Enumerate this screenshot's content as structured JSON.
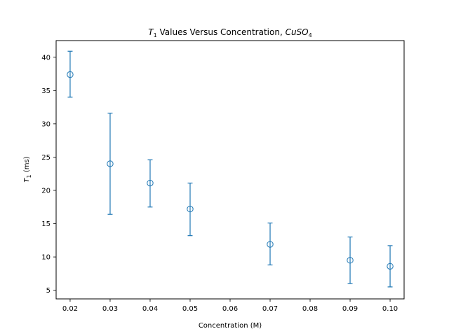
{
  "chart_data": {
    "type": "scatter",
    "title_parts": {
      "sym": "T",
      "sub": "1",
      "mid": " Values Versus Concentration, ",
      "chem": "CuSO",
      "chem_sub": "4"
    },
    "xlabel": "Concentration (M)",
    "ylabel_parts": {
      "sym": "T",
      "sub": "1",
      "rest": " (ms)"
    },
    "xlim": [
      0.0165,
      0.1035
    ],
    "ylim": [
      3.7,
      42.5
    ],
    "xticks": [
      "0.02",
      "0.03",
      "0.04",
      "0.05",
      "0.06",
      "0.07",
      "0.08",
      "0.09",
      "0.10"
    ],
    "yticks": [
      "5",
      "10",
      "15",
      "20",
      "25",
      "30",
      "35",
      "40"
    ],
    "grid": false,
    "legend": "none",
    "marker": "open-circle",
    "color": "#1f77b4",
    "points": [
      {
        "x": 0.02,
        "y": 37.4,
        "yerr_low": 34.0,
        "yerr_high": 40.9
      },
      {
        "x": 0.03,
        "y": 24.0,
        "yerr_low": 16.4,
        "yerr_high": 31.6
      },
      {
        "x": 0.04,
        "y": 21.1,
        "yerr_low": 17.5,
        "yerr_high": 24.6
      },
      {
        "x": 0.05,
        "y": 17.2,
        "yerr_low": 13.2,
        "yerr_high": 21.1
      },
      {
        "x": 0.07,
        "y": 11.9,
        "yerr_low": 8.8,
        "yerr_high": 15.1
      },
      {
        "x": 0.09,
        "y": 9.5,
        "yerr_low": 6.0,
        "yerr_high": 13.0
      },
      {
        "x": 0.1,
        "y": 8.6,
        "yerr_low": 5.5,
        "yerr_high": 11.7
      }
    ]
  }
}
